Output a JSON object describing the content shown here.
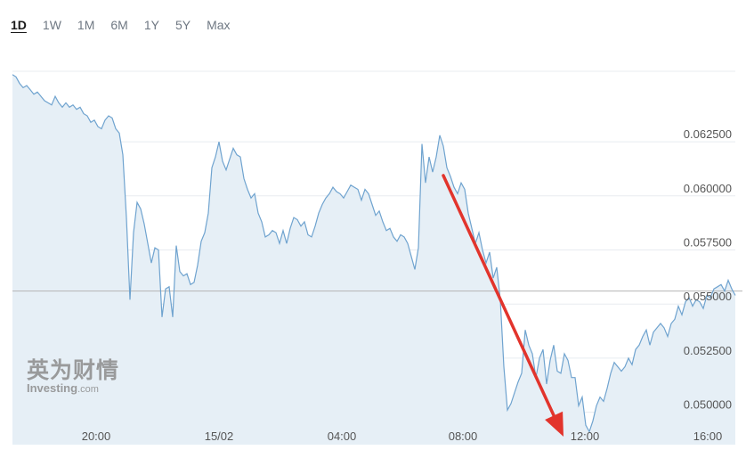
{
  "range_tabs": [
    {
      "label": "1D",
      "active": true
    },
    {
      "label": "1W",
      "active": false
    },
    {
      "label": "1M",
      "active": false
    },
    {
      "label": "6M",
      "active": false
    },
    {
      "label": "1Y",
      "active": false
    },
    {
      "label": "5Y",
      "active": false
    },
    {
      "label": "Max",
      "active": false
    }
  ],
  "watermark": {
    "chinese": "英为财情",
    "english_main": "Investing",
    "english_suffix": ".com"
  },
  "colors": {
    "line": "#6fa3cf",
    "area": "#e6eff6",
    "grid": "#e8ecf0",
    "reference_line": "#b5b5b5",
    "arrow": "#e2342c",
    "axis_text": "#555555"
  },
  "chart_data": {
    "type": "area",
    "x_tick_labels": [
      "20:00",
      "15/02",
      "04:00",
      "08:00",
      "12:00",
      "16:00"
    ],
    "y_tick_labels": [
      "0.062500",
      "0.060000",
      "0.057500",
      "0.055000",
      "0.052500",
      "0.050000"
    ],
    "y_ticks": [
      0.0625,
      0.06,
      0.0575,
      0.055,
      0.0525,
      0.05
    ],
    "ylim": [
      0.0485,
      0.0665
    ],
    "reference_value": 0.0556,
    "grid": true,
    "values": [
      0.0656,
      0.0655,
      0.0652,
      0.065,
      0.0651,
      0.0649,
      0.0647,
      0.0648,
      0.0646,
      0.0644,
      0.0643,
      0.0642,
      0.0646,
      0.0643,
      0.0641,
      0.0643,
      0.0641,
      0.0642,
      0.064,
      0.0641,
      0.0638,
      0.0637,
      0.0634,
      0.0635,
      0.0632,
      0.0631,
      0.0635,
      0.0637,
      0.0636,
      0.0631,
      0.0629,
      0.0619,
      0.059,
      0.0552,
      0.0583,
      0.0597,
      0.0594,
      0.0587,
      0.0578,
      0.0569,
      0.0576,
      0.0575,
      0.0544,
      0.0557,
      0.0558,
      0.0544,
      0.0577,
      0.0565,
      0.0563,
      0.0564,
      0.0559,
      0.056,
      0.0568,
      0.0579,
      0.0583,
      0.0592,
      0.0613,
      0.0618,
      0.0625,
      0.0616,
      0.0612,
      0.0617,
      0.0622,
      0.0619,
      0.0618,
      0.0608,
      0.0603,
      0.0599,
      0.0601,
      0.0592,
      0.0588,
      0.0581,
      0.0582,
      0.0584,
      0.0583,
      0.0578,
      0.0584,
      0.0578,
      0.0585,
      0.059,
      0.0589,
      0.0586,
      0.0588,
      0.0582,
      0.0581,
      0.0586,
      0.0592,
      0.0596,
      0.0599,
      0.0601,
      0.0604,
      0.0602,
      0.0601,
      0.0599,
      0.0602,
      0.0605,
      0.0604,
      0.0603,
      0.0598,
      0.0603,
      0.0601,
      0.0596,
      0.0591,
      0.0593,
      0.0588,
      0.0584,
      0.0585,
      0.0581,
      0.0579,
      0.0582,
      0.0581,
      0.0578,
      0.0572,
      0.0566,
      0.0576,
      0.0624,
      0.0606,
      0.0618,
      0.0611,
      0.0618,
      0.0628,
      0.0623,
      0.0613,
      0.0609,
      0.0604,
      0.0601,
      0.0606,
      0.0603,
      0.0592,
      0.0585,
      0.0578,
      0.0583,
      0.0575,
      0.0569,
      0.0574,
      0.0562,
      0.0567,
      0.0552,
      0.0521,
      0.0501,
      0.0504,
      0.0509,
      0.0514,
      0.0518,
      0.0538,
      0.0531,
      0.0527,
      0.0516,
      0.0525,
      0.0529,
      0.0513,
      0.0524,
      0.0531,
      0.0519,
      0.0518,
      0.0527,
      0.0524,
      0.0516,
      0.0516,
      0.0503,
      0.0507,
      0.0494,
      0.0491,
      0.0496,
      0.0503,
      0.0507,
      0.0505,
      0.0511,
      0.0518,
      0.0523,
      0.0521,
      0.0519,
      0.0521,
      0.0525,
      0.0522,
      0.0529,
      0.0531,
      0.0535,
      0.0538,
      0.0531,
      0.0537,
      0.0539,
      0.0541,
      0.0539,
      0.0535,
      0.0541,
      0.0543,
      0.0549,
      0.0545,
      0.0551,
      0.0553,
      0.0549,
      0.0552,
      0.0551,
      0.0548,
      0.0554,
      0.0553,
      0.0557,
      0.0558,
      0.0559,
      0.0556,
      0.0561,
      0.0557,
      0.0554
    ]
  }
}
